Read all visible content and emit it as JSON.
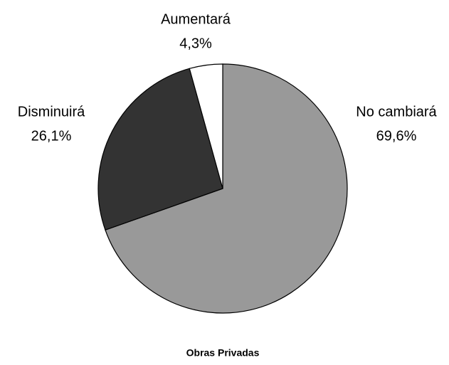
{
  "chart_data": {
    "type": "pie",
    "title": "Obras Privadas",
    "categories": [
      "No cambiará",
      "Disminuirá",
      "Aumentará"
    ],
    "values": [
      69.6,
      26.1,
      4.3
    ],
    "value_labels": [
      "69,6%",
      "26,1%",
      "4,3%"
    ],
    "colors": [
      "#999999",
      "#333333",
      "#ffffff"
    ]
  }
}
